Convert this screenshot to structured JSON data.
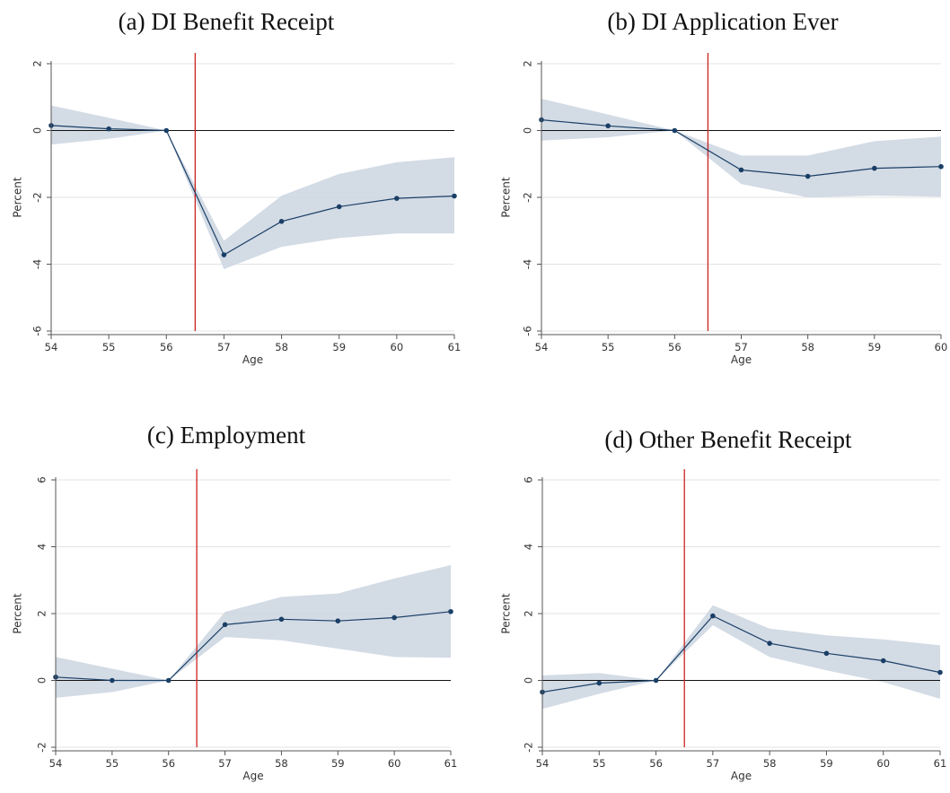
{
  "chart_data": [
    {
      "type": "line",
      "title": "(a) DI Benefit Receipt",
      "xlabel": "Age",
      "ylabel": "Percent",
      "x": [
        54,
        55,
        56,
        57,
        58,
        59,
        60,
        61
      ],
      "xlim": [
        54,
        61
      ],
      "ylim": [
        -6,
        2
      ],
      "yticks": [
        -6,
        -4,
        -2,
        0,
        2
      ],
      "cutoff_x": 56.5,
      "series": [
        {
          "values": [
            0.15,
            0.05,
            0.0,
            -3.72,
            -2.72,
            -2.28,
            -2.03,
            -1.96
          ],
          "ci_lower": [
            -0.42,
            -0.25,
            0.0,
            -4.15,
            -3.48,
            -3.22,
            -3.08,
            -3.08
          ],
          "ci_upper": [
            0.75,
            0.38,
            0.0,
            -3.3,
            -1.95,
            -1.3,
            -0.95,
            -0.8
          ]
        }
      ],
      "color": "#1a3f66",
      "band_color": "#cbd5e1",
      "cutoff_color": "#cc2222",
      "grid": true
    },
    {
      "type": "line",
      "title": "(b) DI Application Ever",
      "xlabel": "Age",
      "ylabel": "Percent",
      "x": [
        54,
        55,
        56,
        57,
        58,
        59,
        60
      ],
      "xlim": [
        54,
        60
      ],
      "ylim": [
        -6,
        2
      ],
      "yticks": [
        -6,
        -4,
        -2,
        0,
        2
      ],
      "cutoff_x": 56.5,
      "series": [
        {
          "values": [
            0.32,
            0.14,
            0.0,
            -1.18,
            -1.37,
            -1.13,
            -1.08
          ],
          "ci_lower": [
            -0.3,
            -0.2,
            0.0,
            -1.6,
            -2.0,
            -1.95,
            -1.98
          ],
          "ci_upper": [
            0.95,
            0.48,
            0.0,
            -0.75,
            -0.75,
            -0.32,
            -0.18
          ]
        }
      ],
      "color": "#1a3f66",
      "band_color": "#cbd5e1",
      "cutoff_color": "#cc2222",
      "grid": true
    },
    {
      "type": "line",
      "title": "(c) Employment",
      "xlabel": "Age",
      "ylabel": "Percent",
      "x": [
        54,
        55,
        56,
        57,
        58,
        59,
        60,
        61
      ],
      "xlim": [
        54,
        61
      ],
      "ylim": [
        -2,
        6
      ],
      "yticks": [
        -2,
        0,
        2,
        4,
        6
      ],
      "cutoff_x": 56.5,
      "series": [
        {
          "values": [
            0.1,
            0.0,
            0.0,
            1.67,
            1.83,
            1.78,
            1.88,
            2.06
          ],
          "ci_lower": [
            -0.52,
            -0.35,
            0.0,
            1.3,
            1.2,
            0.95,
            0.7,
            0.68
          ],
          "ci_upper": [
            0.7,
            0.35,
            0.0,
            2.05,
            2.5,
            2.6,
            3.05,
            3.45
          ]
        }
      ],
      "color": "#1a3f66",
      "band_color": "#cbd5e1",
      "cutoff_color": "#cc2222",
      "grid": true
    },
    {
      "type": "line",
      "title": "(d) Other Benefit Receipt",
      "xlabel": "Age",
      "ylabel": "Percent",
      "x": [
        54,
        55,
        56,
        57,
        58,
        59,
        60,
        61
      ],
      "xlim": [
        54,
        61
      ],
      "ylim": [
        -2,
        6
      ],
      "yticks": [
        -2,
        0,
        2,
        4,
        6
      ],
      "cutoff_x": 56.5,
      "series": [
        {
          "values": [
            -0.35,
            -0.08,
            0.0,
            1.93,
            1.11,
            0.81,
            0.59,
            0.24
          ],
          "ci_lower": [
            -0.85,
            -0.4,
            0.0,
            1.65,
            0.7,
            0.3,
            -0.05,
            -0.55
          ],
          "ci_upper": [
            0.15,
            0.22,
            0.0,
            2.25,
            1.55,
            1.35,
            1.23,
            1.05
          ]
        }
      ],
      "color": "#1a3f66",
      "band_color": "#cbd5e1",
      "cutoff_color": "#cc2222",
      "grid": true
    }
  ]
}
